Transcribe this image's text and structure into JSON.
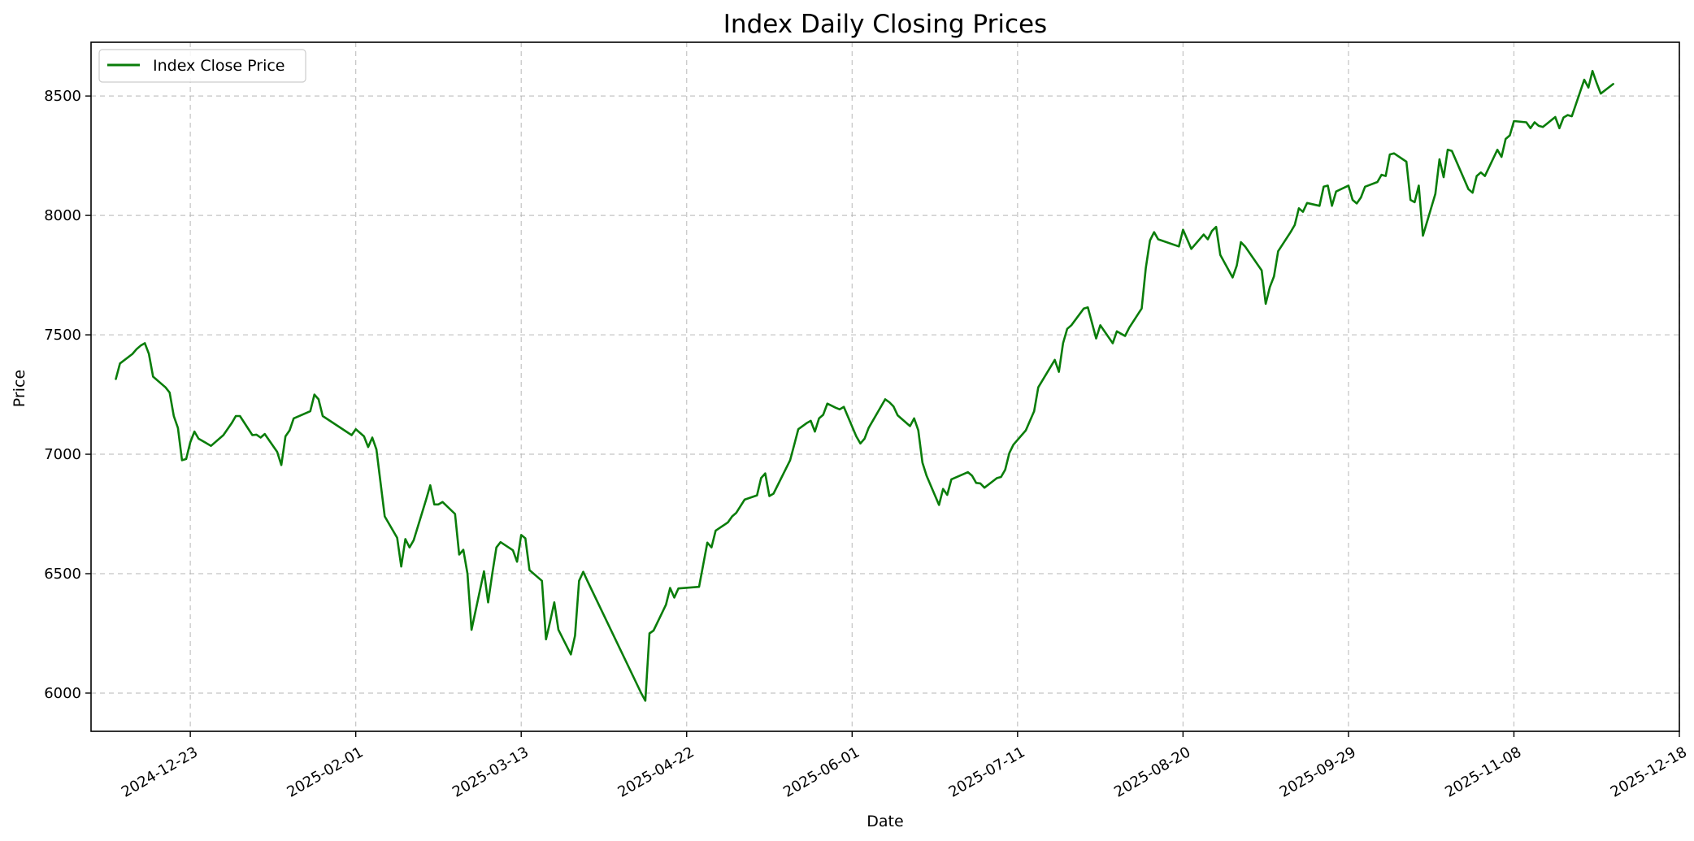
{
  "chart_data": {
    "type": "line",
    "title": "Index Daily Closing Prices",
    "xlabel": "Date",
    "ylabel": "Price",
    "x_axis_type": "date",
    "xlim": [
      "2024-11-29",
      "2025-12-18"
    ],
    "ylim": [
      5840,
      8725
    ],
    "x_ticks": [
      "2024-12-23",
      "2025-02-01",
      "2025-03-13",
      "2025-04-22",
      "2025-06-01",
      "2025-07-11",
      "2025-08-20",
      "2025-09-29",
      "2025-11-08",
      "2025-12-18"
    ],
    "y_ticks": [
      6000,
      6500,
      7000,
      7500,
      8000,
      8500
    ],
    "grid": true,
    "legend_position": "top-left",
    "colors": {
      "line": "#0a7d0a",
      "grid": "#b0b0b0"
    },
    "series": [
      {
        "name": "Index Close Price",
        "points": [
          [
            "2024-12-05",
            7315
          ],
          [
            "2024-12-06",
            7380
          ],
          [
            "2024-12-09",
            7420
          ],
          [
            "2024-12-10",
            7440
          ],
          [
            "2024-12-11",
            7455
          ],
          [
            "2024-12-12",
            7465
          ],
          [
            "2024-12-13",
            7420
          ],
          [
            "2024-12-14",
            7325
          ],
          [
            "2024-12-17",
            7280
          ],
          [
            "2024-12-18",
            7258
          ],
          [
            "2024-12-19",
            7160
          ],
          [
            "2024-12-20",
            7110
          ],
          [
            "2024-12-21",
            6975
          ],
          [
            "2024-12-22",
            6980
          ],
          [
            "2024-12-23",
            7050
          ],
          [
            "2024-12-24",
            7095
          ],
          [
            "2024-12-25",
            7065
          ],
          [
            "2024-12-28",
            7035
          ],
          [
            "2024-12-31",
            7080
          ],
          [
            "2025-01-02",
            7130
          ],
          [
            "2025-01-03",
            7160
          ],
          [
            "2025-01-04",
            7160
          ],
          [
            "2025-01-07",
            7080
          ],
          [
            "2025-01-08",
            7082
          ],
          [
            "2025-01-09",
            7070
          ],
          [
            "2025-01-10",
            7085
          ],
          [
            "2025-01-13",
            7010
          ],
          [
            "2025-01-14",
            6955
          ],
          [
            "2025-01-15",
            7075
          ],
          [
            "2025-01-16",
            7100
          ],
          [
            "2025-01-17",
            7150
          ],
          [
            "2025-01-21",
            7180
          ],
          [
            "2025-01-22",
            7250
          ],
          [
            "2025-01-23",
            7230
          ],
          [
            "2025-01-24",
            7160
          ],
          [
            "2025-01-31",
            7080
          ],
          [
            "2025-02-01",
            7105
          ],
          [
            "2025-02-03",
            7075
          ],
          [
            "2025-02-04",
            7030
          ],
          [
            "2025-02-05",
            7070
          ],
          [
            "2025-02-06",
            7020
          ],
          [
            "2025-02-07",
            6880
          ],
          [
            "2025-02-08",
            6740
          ],
          [
            "2025-02-11",
            6650
          ],
          [
            "2025-02-12",
            6530
          ],
          [
            "2025-02-13",
            6645
          ],
          [
            "2025-02-14",
            6610
          ],
          [
            "2025-02-15",
            6640
          ],
          [
            "2025-02-18",
            6810
          ],
          [
            "2025-02-19",
            6870
          ],
          [
            "2025-02-20",
            6790
          ],
          [
            "2025-02-21",
            6790
          ],
          [
            "2025-02-22",
            6800
          ],
          [
            "2025-02-25",
            6750
          ],
          [
            "2025-02-26",
            6580
          ],
          [
            "2025-02-27",
            6600
          ],
          [
            "2025-02-28",
            6500
          ],
          [
            "2025-03-01",
            6265
          ],
          [
            "2025-03-04",
            6510
          ],
          [
            "2025-03-05",
            6380
          ],
          [
            "2025-03-06",
            6500
          ],
          [
            "2025-03-07",
            6610
          ],
          [
            "2025-03-08",
            6632
          ],
          [
            "2025-03-11",
            6598
          ],
          [
            "2025-03-12",
            6550
          ],
          [
            "2025-03-13",
            6662
          ],
          [
            "2025-03-14",
            6648
          ],
          [
            "2025-03-15",
            6515
          ],
          [
            "2025-03-18",
            6470
          ],
          [
            "2025-03-19",
            6225
          ],
          [
            "2025-03-20",
            6300
          ],
          [
            "2025-03-21",
            6380
          ],
          [
            "2025-03-22",
            6265
          ],
          [
            "2025-03-25",
            6162
          ],
          [
            "2025-03-26",
            6240
          ],
          [
            "2025-03-27",
            6470
          ],
          [
            "2025-03-28",
            6508
          ],
          [
            "2025-03-29",
            6470
          ],
          [
            "2025-04-11",
            6000
          ],
          [
            "2025-04-12",
            5968
          ],
          [
            "2025-04-13",
            6250
          ],
          [
            "2025-04-14",
            6262
          ],
          [
            "2025-04-17",
            6370
          ],
          [
            "2025-04-18",
            6440
          ],
          [
            "2025-04-19",
            6400
          ],
          [
            "2025-04-20",
            6438
          ],
          [
            "2025-04-25",
            6445
          ],
          [
            "2025-04-27",
            6630
          ],
          [
            "2025-04-28",
            6610
          ],
          [
            "2025-04-29",
            6680
          ],
          [
            "2025-05-02",
            6715
          ],
          [
            "2025-05-03",
            6740
          ],
          [
            "2025-05-04",
            6755
          ],
          [
            "2025-05-06",
            6810
          ],
          [
            "2025-05-09",
            6828
          ],
          [
            "2025-05-10",
            6900
          ],
          [
            "2025-05-11",
            6920
          ],
          [
            "2025-05-12",
            6825
          ],
          [
            "2025-05-13",
            6835
          ],
          [
            "2025-05-17",
            6975
          ],
          [
            "2025-05-18",
            7040
          ],
          [
            "2025-05-19",
            7105
          ],
          [
            "2025-05-21",
            7130
          ],
          [
            "2025-05-22",
            7140
          ],
          [
            "2025-05-23",
            7095
          ],
          [
            "2025-05-24",
            7150
          ],
          [
            "2025-05-25",
            7165
          ],
          [
            "2025-05-26",
            7212
          ],
          [
            "2025-05-28",
            7195
          ],
          [
            "2025-05-29",
            7188
          ],
          [
            "2025-05-30",
            7198
          ],
          [
            "2025-06-02",
            7075
          ],
          [
            "2025-06-03",
            7045
          ],
          [
            "2025-06-04",
            7065
          ],
          [
            "2025-06-05",
            7110
          ],
          [
            "2025-06-09",
            7230
          ],
          [
            "2025-06-10",
            7218
          ],
          [
            "2025-06-11",
            7200
          ],
          [
            "2025-06-12",
            7163
          ],
          [
            "2025-06-15",
            7118
          ],
          [
            "2025-06-16",
            7150
          ],
          [
            "2025-06-17",
            7100
          ],
          [
            "2025-06-18",
            6965
          ],
          [
            "2025-06-19",
            6910
          ],
          [
            "2025-06-22",
            6788
          ],
          [
            "2025-06-23",
            6855
          ],
          [
            "2025-06-24",
            6830
          ],
          [
            "2025-06-25",
            6895
          ],
          [
            "2025-06-29",
            6925
          ],
          [
            "2025-06-30",
            6910
          ],
          [
            "2025-07-01",
            6880
          ],
          [
            "2025-07-02",
            6878
          ],
          [
            "2025-07-03",
            6860
          ],
          [
            "2025-07-06",
            6900
          ],
          [
            "2025-07-07",
            6905
          ],
          [
            "2025-07-08",
            6935
          ],
          [
            "2025-07-09",
            7005
          ],
          [
            "2025-07-10",
            7040
          ],
          [
            "2025-07-13",
            7100
          ],
          [
            "2025-07-15",
            7180
          ],
          [
            "2025-07-16",
            7280
          ],
          [
            "2025-07-20",
            7395
          ],
          [
            "2025-07-21",
            7345
          ],
          [
            "2025-07-22",
            7465
          ],
          [
            "2025-07-23",
            7525
          ],
          [
            "2025-07-24",
            7540
          ],
          [
            "2025-07-27",
            7610
          ],
          [
            "2025-07-28",
            7615
          ],
          [
            "2025-07-30",
            7485
          ],
          [
            "2025-07-31",
            7540
          ],
          [
            "2025-08-03",
            7465
          ],
          [
            "2025-08-04",
            7515
          ],
          [
            "2025-08-06",
            7495
          ],
          [
            "2025-08-07",
            7530
          ],
          [
            "2025-08-10",
            7610
          ],
          [
            "2025-08-11",
            7780
          ],
          [
            "2025-08-12",
            7895
          ],
          [
            "2025-08-13",
            7930
          ],
          [
            "2025-08-14",
            7900
          ],
          [
            "2025-08-19",
            7870
          ],
          [
            "2025-08-20",
            7940
          ],
          [
            "2025-08-21",
            7900
          ],
          [
            "2025-08-22",
            7860
          ],
          [
            "2025-08-25",
            7920
          ],
          [
            "2025-08-26",
            7900
          ],
          [
            "2025-08-27",
            7935
          ],
          [
            "2025-08-28",
            7952
          ],
          [
            "2025-08-29",
            7835
          ],
          [
            "2025-09-01",
            7740
          ],
          [
            "2025-09-02",
            7790
          ],
          [
            "2025-09-03",
            7888
          ],
          [
            "2025-09-04",
            7870
          ],
          [
            "2025-09-08",
            7770
          ],
          [
            "2025-09-09",
            7630
          ],
          [
            "2025-09-10",
            7700
          ],
          [
            "2025-09-11",
            7745
          ],
          [
            "2025-09-12",
            7850
          ],
          [
            "2025-09-15",
            7930
          ],
          [
            "2025-09-16",
            7960
          ],
          [
            "2025-09-17",
            8030
          ],
          [
            "2025-09-18",
            8015
          ],
          [
            "2025-09-19",
            8052
          ],
          [
            "2025-09-22",
            8040
          ],
          [
            "2025-09-23",
            8120
          ],
          [
            "2025-09-24",
            8125
          ],
          [
            "2025-09-25",
            8040
          ],
          [
            "2025-09-26",
            8100
          ],
          [
            "2025-09-29",
            8125
          ],
          [
            "2025-09-30",
            8065
          ],
          [
            "2025-10-01",
            8050
          ],
          [
            "2025-10-02",
            8075
          ],
          [
            "2025-10-03",
            8120
          ],
          [
            "2025-10-06",
            8140
          ],
          [
            "2025-10-07",
            8170
          ],
          [
            "2025-10-08",
            8165
          ],
          [
            "2025-10-09",
            8255
          ],
          [
            "2025-10-10",
            8260
          ],
          [
            "2025-10-13",
            8225
          ],
          [
            "2025-10-14",
            8065
          ],
          [
            "2025-10-15",
            8055
          ],
          [
            "2025-10-16",
            8125
          ],
          [
            "2025-10-17",
            7915
          ],
          [
            "2025-10-20",
            8090
          ],
          [
            "2025-10-21",
            8235
          ],
          [
            "2025-10-22",
            8160
          ],
          [
            "2025-10-23",
            8275
          ],
          [
            "2025-10-24",
            8270
          ],
          [
            "2025-10-27",
            8150
          ],
          [
            "2025-10-28",
            8110
          ],
          [
            "2025-10-29",
            8095
          ],
          [
            "2025-10-30",
            8165
          ],
          [
            "2025-10-31",
            8180
          ],
          [
            "2025-11-01",
            8165
          ],
          [
            "2025-11-04",
            8275
          ],
          [
            "2025-11-05",
            8245
          ],
          [
            "2025-11-06",
            8320
          ],
          [
            "2025-11-07",
            8335
          ],
          [
            "2025-11-08",
            8395
          ],
          [
            "2025-11-11",
            8390
          ],
          [
            "2025-11-12",
            8365
          ],
          [
            "2025-11-13",
            8390
          ],
          [
            "2025-11-14",
            8375
          ],
          [
            "2025-11-15",
            8370
          ],
          [
            "2025-11-18",
            8412
          ],
          [
            "2025-11-19",
            8365
          ],
          [
            "2025-11-20",
            8410
          ],
          [
            "2025-11-21",
            8420
          ],
          [
            "2025-11-22",
            8415
          ],
          [
            "2025-11-25",
            8568
          ],
          [
            "2025-11-26",
            8535
          ],
          [
            "2025-11-27",
            8605
          ],
          [
            "2025-11-28",
            8555
          ],
          [
            "2025-11-29",
            8510
          ],
          [
            "2025-12-02",
            8550
          ]
        ]
      }
    ]
  }
}
